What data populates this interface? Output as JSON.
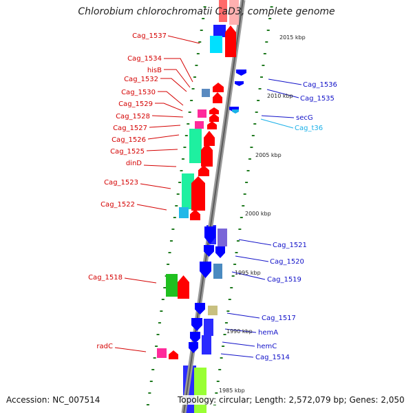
{
  "title": "Chlorobium chlorochromatii CaD3, complete genome",
  "footer": {
    "accession": "Accession: NC_007514",
    "topology": "Topology: circular; Length: 2,572,079 bp; Genes: 2,050"
  },
  "colors": {
    "forward": "#ff0000",
    "reverse": "#0000ff",
    "rna": "#1ab0e8",
    "backbone": "#8a8a8a",
    "tick": "#1f7a1f"
  },
  "scale_labels": [
    "2015 kbp",
    "2010 kbp",
    "2005 kbp",
    "2000 kbp",
    "1995 kbp",
    "1990 kbp",
    "1985 kbp"
  ],
  "left_labels": [
    "Cag_1537",
    "Cag_1534",
    "hisB",
    "Cag_1532",
    "Cag_1530",
    "Cag_1529",
    "Cag_1528",
    "Cag_1527",
    "Cag_1526",
    "Cag_1525",
    "dinD",
    "Cag_1523",
    "Cag_1522",
    "Cag_1518",
    "radC"
  ],
  "right_labels": [
    "Cag_1536",
    "Cag_1535",
    "secG",
    "Cag_t36",
    "Cag_1521",
    "Cag_1520",
    "Cag_1519",
    "Cag_1517",
    "hemA",
    "hemC",
    "Cag_1514"
  ]
}
